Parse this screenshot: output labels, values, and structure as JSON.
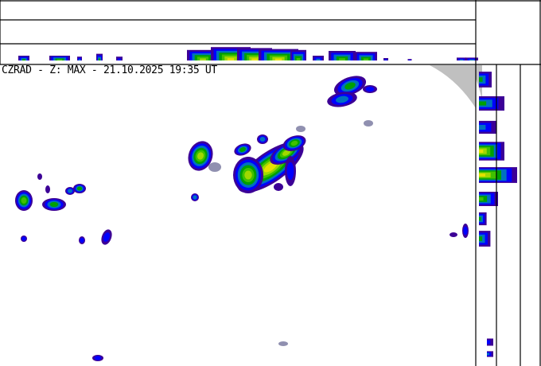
{
  "header": {
    "title": "CZRAD - Z: MAX - 21.10.2025 19:35 UT"
  },
  "product": {
    "network": "CZRAD",
    "quantity": "Z",
    "projection": "MAX",
    "date": "21.10.2025",
    "time": "19:35 UT"
  },
  "colors": {
    "frame": "#000000",
    "no_coverage": "#c0c0c0",
    "clutter": "#9090b0",
    "scale": [
      "#3c0096",
      "#0000ff",
      "#0070c0",
      "#00a000",
      "#40c000",
      "#a0d800",
      "#e8e000",
      "#f0a000"
    ]
  }
}
